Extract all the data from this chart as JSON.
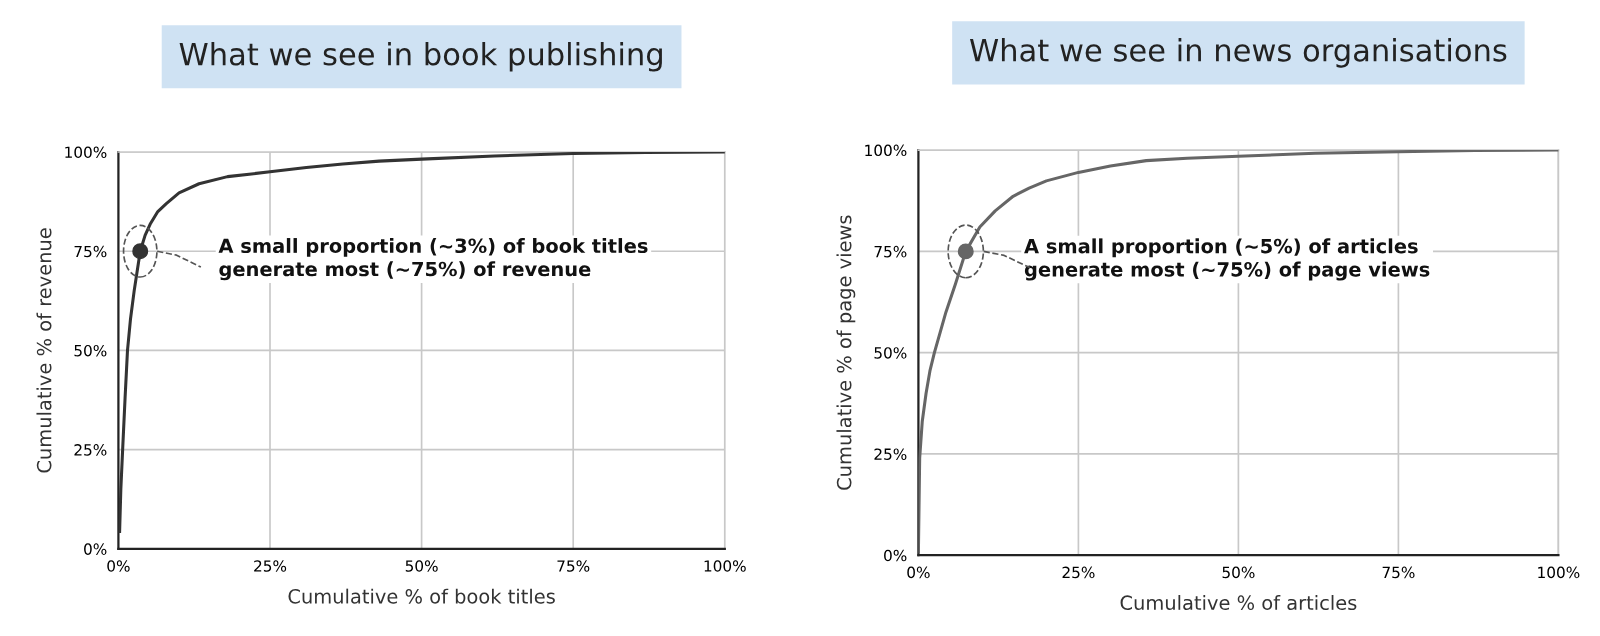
{
  "chart_data": [
    {
      "type": "line",
      "title": "What we see in book publishing",
      "xlabel": "Cumulative % of book titles",
      "ylabel": "Cumulative % of revenue",
      "xlim": [
        0,
        100
      ],
      "ylim": [
        0,
        100
      ],
      "xticks": [
        {
          "value": 0,
          "label": "0%"
        },
        {
          "value": 25,
          "label": "25%"
        },
        {
          "value": 50,
          "label": "50%"
        },
        {
          "value": 75,
          "label": "75%"
        },
        {
          "value": 100,
          "label": "100%"
        }
      ],
      "yticks": [
        {
          "value": 0,
          "label": "0%"
        },
        {
          "value": 25,
          "label": "25%"
        },
        {
          "value": 50,
          "label": "50%"
        },
        {
          "value": 75,
          "label": "75%"
        },
        {
          "value": 100,
          "label": "100%"
        }
      ],
      "grid": true,
      "legend": false,
      "series": [
        {
          "color": "#333333",
          "x": [
            0.2,
            0.4,
            0.7,
            1.1,
            1.5,
            2,
            2.6,
            3.1,
            3.6,
            4.4,
            5.3,
            6.5,
            7.9,
            10,
            13.3,
            18,
            25,
            31,
            37,
            43,
            50,
            62,
            75,
            87,
            100
          ],
          "values": [
            4.4,
            15,
            25,
            38,
            50,
            58,
            65,
            70,
            75,
            79,
            82,
            85,
            87,
            89.7,
            92,
            93.8,
            95,
            96.1,
            97,
            97.7,
            98.2,
            99,
            99.6,
            99.9,
            100
          ]
        },
        {
          "type": "scatter",
          "color": "#333333",
          "marker": "circle",
          "x": [
            3.6
          ],
          "values": [
            75
          ]
        }
      ],
      "annotations": [
        "A small proportion (~3%) of book titles\ngenerate most (~75%) of revenue"
      ]
    },
    {
      "type": "line",
      "title": "What we see in news organisations",
      "xlabel": "Cumulative % of articles",
      "ylabel": "Cumulative % of page views",
      "xlim": [
        0,
        100
      ],
      "ylim": [
        0,
        100
      ],
      "xticks": [
        {
          "value": 0,
          "label": "0%"
        },
        {
          "value": 25,
          "label": "25%"
        },
        {
          "value": 50,
          "label": "50%"
        },
        {
          "value": 75,
          "label": "75%"
        },
        {
          "value": 100,
          "label": "100%"
        }
      ],
      "yticks": [
        {
          "value": 0,
          "label": "0%"
        },
        {
          "value": 25,
          "label": "25%"
        },
        {
          "value": 50,
          "label": "50%"
        },
        {
          "value": 75,
          "label": "75%"
        },
        {
          "value": 100,
          "label": "100%"
        }
      ],
      "grid": true,
      "legend": false,
      "series": [
        {
          "color": "#666666",
          "x": [
            0,
            0.2,
            0.6,
            1.2,
            1.8,
            2.5,
            3.4,
            4.3,
            5.8,
            7.4,
            9.6,
            12,
            14.8,
            17.3,
            20,
            25,
            30,
            35.6,
            42,
            50,
            62,
            75,
            87,
            100
          ],
          "values": [
            0.8,
            24,
            33,
            40,
            45.5,
            50,
            55,
            60,
            67,
            75,
            81,
            85,
            88.6,
            90.6,
            92.4,
            94.5,
            96.1,
            97.4,
            98,
            98.5,
            99.2,
            99.6,
            99.9,
            100
          ]
        },
        {
          "type": "scatter",
          "color": "#666666",
          "marker": "circle",
          "x": [
            7.4
          ],
          "values": [
            75
          ]
        }
      ],
      "annotations": [
        "A small proportion (~5%) of articles\ngenerate most (~75%) of page views"
      ]
    }
  ]
}
